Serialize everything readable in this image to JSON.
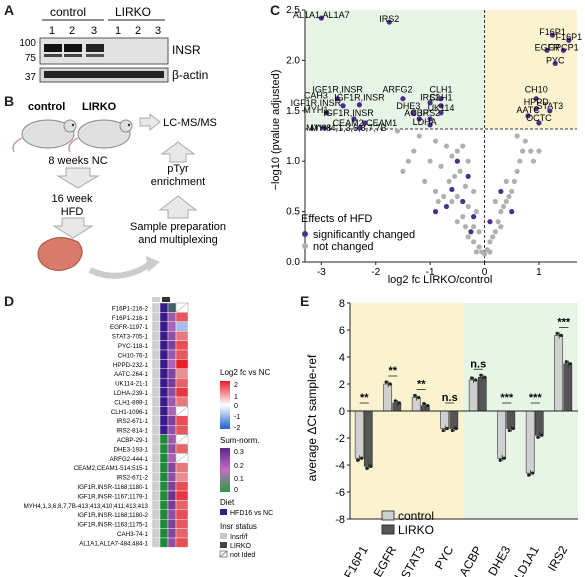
{
  "panels": {
    "A": {
      "label": "A",
      "groups": [
        "control",
        "LIRKO"
      ],
      "lanes": [
        "1",
        "2",
        "3",
        "1",
        "2",
        "3"
      ],
      "markers": [
        "100",
        "75",
        "37"
      ],
      "bands": [
        "INSR",
        "β-actin"
      ]
    },
    "B": {
      "label": "B",
      "mice": [
        "control",
        "LIRKO"
      ],
      "steps": [
        "8 weeks NC",
        "16 week HFD",
        "Sample preparation and multiplexing",
        "pTyr enrichment",
        "LC-MS/MS"
      ]
    },
    "C": {
      "label": "C",
      "ylabel": "−log10 (pvalue adjusted)",
      "xlabel": "log2 fc LIRKO/control",
      "legend_title": "Effects of HFD",
      "legend": [
        "significantly changed",
        "not changed"
      ],
      "colors": {
        "changed": "#4b2f8a",
        "unchanged": "#b0b0b0",
        "left_bg": "#e6f5e6",
        "right_bg": "#fbf3d0"
      }
    },
    "D": {
      "label": "D",
      "rows": [
        "F16P1-216-2",
        "F16P1-216-1",
        "EGFR-1197-1",
        "STAT3-705-1",
        "PYC-118-1",
        "CH10-76-1",
        "HPPD-232-1",
        "AATC-264-1",
        "UK114-21-1",
        "LDHA-239-1",
        "CLH1-899-1",
        "CLH1-1096-1",
        "IRS2-671-1",
        "IRS2-814-1",
        "ACBP-29-1",
        "DHE3-193-1",
        "ARFG2-444-1",
        "CEAM2,CEAM1-514;515-1",
        "IRS2-671-2",
        "IGF1R,INSR-1168;1180-1",
        "IGF1R,INSR-1167;1179-1",
        "MYH4,1,3,6,8,7,7B-413;413;410;411;413;413",
        "IGF1R,INSR-1168;1180-2",
        "IGF1R,INSR-1163;1175-1",
        "CAH3-74-1",
        "AL1A1,AL1A7-484;484-1"
      ],
      "legend_fc_title": "Log2 fc vs NC",
      "legend_fc_ticks": [
        "2",
        "1",
        "0",
        "-1",
        "-2"
      ],
      "legend_sum_title": "Sum-norm.",
      "legend_sum_ticks": [
        "0.3",
        "0.2",
        "0.1",
        "0"
      ],
      "legend_diet_title": "Diet",
      "legend_diet_item": "HFD16 vs NC",
      "legend_insr_title": "Insr status",
      "legend_insr_items": [
        "Insrf/f",
        "LIRKO",
        "not Ided"
      ]
    },
    "E": {
      "label": "E",
      "ylabel": "average ΔCt sample-ref",
      "legend": [
        "control",
        "LIRKO"
      ],
      "significance": [
        "**",
        "**",
        "**",
        "n.s",
        "n.s",
        "***",
        "***",
        "***"
      ]
    }
  },
  "chart_data": [
    {
      "type": "scatter",
      "title": "",
      "xlabel": "log2 fc LIRKO/control",
      "ylabel": "−log10 (pvalue adjusted)",
      "xlim": [
        -3.3,
        1.7
      ],
      "ylim": [
        0,
        2.5
      ],
      "xticks": [
        "-3",
        "-2",
        "-1",
        "0",
        "1"
      ],
      "yticks": [
        "0.0",
        "0.5",
        "1.0",
        "1.5",
        "2.0",
        "2.5"
      ],
      "labels": [
        {
          "text": "AL1A1,AL1A7",
          "x": -3.0,
          "y": 2.42
        },
        {
          "text": "IRS2",
          "x": -1.75,
          "y": 2.38
        },
        {
          "text": "F16P1",
          "x": 1.25,
          "y": 2.25
        },
        {
          "text": "F16P1",
          "x": 1.55,
          "y": 2.2
        },
        {
          "text": "EGFR",
          "x": 1.15,
          "y": 2.1
        },
        {
          "text": "GPCP1",
          "x": 1.45,
          "y": 2.1
        },
        {
          "text": "PYC",
          "x": 1.3,
          "y": 1.97
        },
        {
          "text": "CAH3",
          "x": -3.1,
          "y": 1.62
        },
        {
          "text": "IGF1R,INSR",
          "x": -2.7,
          "y": 1.68
        },
        {
          "text": "IGF1R,INSR",
          "x": -3.1,
          "y": 1.55
        },
        {
          "text": "IGF1R,INSR",
          "x": -2.3,
          "y": 1.6
        },
        {
          "text": "ARFG2",
          "x": -1.6,
          "y": 1.68
        },
        {
          "text": "IRS2",
          "x": -1.0,
          "y": 1.6
        },
        {
          "text": "CLH1",
          "x": -0.8,
          "y": 1.68
        },
        {
          "text": "CLH1",
          "x": -0.8,
          "y": 1.6
        },
        {
          "text": "UK114",
          "x": -0.8,
          "y": 1.5
        },
        {
          "text": "MYH1",
          "x": -3.1,
          "y": 1.48
        },
        {
          "text": "IGF1R,INSR",
          "x": -2.5,
          "y": 1.45
        },
        {
          "text": "CEAM2,CEAM1",
          "x": -2.2,
          "y": 1.35
        },
        {
          "text": "DHE3",
          "x": -1.4,
          "y": 1.52
        },
        {
          "text": "ACBP",
          "x": -1.25,
          "y": 1.45
        },
        {
          "text": "IRS2",
          "x": -1.0,
          "y": 1.45
        },
        {
          "text": "LDHA",
          "x": -1.1,
          "y": 1.36
        },
        {
          "text": "MYH8",
          "x": -3.05,
          "y": 1.3
        },
        {
          "text": "MYH4,1,3,6,8,7,7B",
          "x": -2.5,
          "y": 1.3
        },
        {
          "text": "CH10",
          "x": 0.95,
          "y": 1.68
        },
        {
          "text": "HPPD",
          "x": 0.95,
          "y": 1.56
        },
        {
          "text": "STAT3",
          "x": 1.2,
          "y": 1.52
        },
        {
          "text": "AATC",
          "x": 0.8,
          "y": 1.48
        },
        {
          "text": "OCTC",
          "x": 1.0,
          "y": 1.4
        }
      ],
      "points_changed": [
        [
          -3.0,
          2.42
        ],
        [
          -1.75,
          2.38
        ],
        [
          1.25,
          2.25
        ],
        [
          1.55,
          2.2
        ],
        [
          1.15,
          2.1
        ],
        [
          1.45,
          2.1
        ],
        [
          1.3,
          1.97
        ],
        [
          -2.7,
          1.62
        ],
        [
          -2.6,
          1.55
        ],
        [
          -2.3,
          1.56
        ],
        [
          -1.5,
          1.62
        ],
        [
          -1.0,
          1.58
        ],
        [
          -0.8,
          1.62
        ],
        [
          -0.8,
          1.55
        ],
        [
          -0.8,
          1.48
        ],
        [
          -2.9,
          1.48
        ],
        [
          -2.4,
          1.42
        ],
        [
          -2.2,
          1.38
        ],
        [
          -1.3,
          1.48
        ],
        [
          -1.2,
          1.42
        ],
        [
          -1.0,
          1.42
        ],
        [
          -1.0,
          1.36
        ],
        [
          -2.95,
          1.33
        ],
        [
          -2.3,
          1.33
        ],
        [
          0.95,
          1.62
        ],
        [
          0.95,
          1.52
        ],
        [
          1.2,
          1.5
        ],
        [
          0.8,
          1.45
        ],
        [
          1.0,
          1.38
        ],
        [
          -0.5,
          1.0
        ],
        [
          -0.3,
          0.85
        ],
        [
          -0.6,
          0.72
        ],
        [
          -0.4,
          0.6
        ],
        [
          -0.7,
          0.55
        ],
        [
          0.3,
          0.7
        ],
        [
          0.5,
          0.5
        ],
        [
          -0.2,
          0.45
        ],
        [
          -0.9,
          0.5
        ],
        [
          0.1,
          0.4
        ],
        [
          -0.25,
          0.3
        ]
      ],
      "points_unchanged": [
        [
          -1.6,
          1.3
        ],
        [
          -1.2,
          1.25
        ],
        [
          -0.9,
          1.2
        ],
        [
          -0.7,
          1.15
        ],
        [
          -0.5,
          1.1
        ],
        [
          -0.4,
          1.15
        ],
        [
          -0.6,
          1.05
        ],
        [
          -1.3,
          1.1
        ],
        [
          -1.0,
          1.0
        ],
        [
          -0.8,
          0.95
        ],
        [
          -0.3,
          1.0
        ],
        [
          -0.45,
          0.9
        ],
        [
          -0.55,
          0.85
        ],
        [
          -0.65,
          0.8
        ],
        [
          -0.35,
          0.75
        ],
        [
          -0.2,
          0.7
        ],
        [
          -0.5,
          0.65
        ],
        [
          -0.6,
          0.6
        ],
        [
          -0.3,
          0.55
        ],
        [
          -0.15,
          0.5
        ],
        [
          -0.4,
          0.45
        ],
        [
          -0.5,
          0.4
        ],
        [
          -0.2,
          0.35
        ],
        [
          -0.1,
          0.3
        ],
        [
          -0.3,
          0.25
        ],
        [
          -0.2,
          0.2
        ],
        [
          -0.1,
          0.15
        ],
        [
          -0.05,
          0.1
        ],
        [
          0.0,
          0.08
        ],
        [
          0.05,
          0.12
        ],
        [
          0.1,
          0.2
        ],
        [
          0.15,
          0.25
        ],
        [
          0.2,
          0.3
        ],
        [
          0.25,
          0.4
        ],
        [
          0.3,
          0.5
        ],
        [
          0.35,
          0.55
        ],
        [
          0.4,
          0.6
        ],
        [
          0.45,
          0.65
        ],
        [
          0.5,
          0.7
        ],
        [
          0.55,
          0.8
        ],
        [
          0.6,
          0.9
        ],
        [
          0.65,
          1.0
        ],
        [
          0.7,
          1.1
        ],
        [
          0.75,
          1.2
        ],
        [
          0.6,
          1.25
        ],
        [
          0.85,
          1.1
        ],
        [
          0.9,
          1.0
        ],
        [
          1.0,
          1.1
        ],
        [
          -1.4,
          1.0
        ],
        [
          -1.5,
          0.9
        ],
        [
          -0.9,
          0.7
        ],
        [
          -0.75,
          0.65
        ],
        [
          -0.85,
          0.6
        ],
        [
          0.2,
          0.6
        ],
        [
          0.4,
          0.8
        ],
        [
          -1.1,
          0.8
        ],
        [
          -0.35,
          0.35
        ],
        [
          0.3,
          0.35
        ],
        [
          0.1,
          0.1
        ],
        [
          -0.15,
          0.1
        ]
      ]
    },
    {
      "type": "heatmap",
      "title": "",
      "columns": [
        "Diet",
        "Insr status",
        "Sum-norm.",
        "Log2 fc vs NC"
      ],
      "rows": [
        "F16P1-216-2",
        "F16P1-216-1",
        "EGFR-1197-1",
        "STAT3-705-1",
        "PYC-118-1",
        "CH10-76-1",
        "HPPD-232-1",
        "AATC-264-1",
        "UK114-21-1",
        "LDHA-239-1",
        "CLH1-899-1",
        "CLH1-1096-1",
        "IRS2-671-1",
        "IRS2-814-1",
        "ACBP-29-1",
        "DHE3-193-1",
        "ARFG2-444-1",
        "CEAM2,CEAM1-514;515-1",
        "IRS2-671-2",
        "IGF1R,INSR-1168;1180-1",
        "IGF1R,INSR-1167;1179-1",
        "MYH4,1,3,6,8,7,7B-413;413;410;411;413;413",
        "IGF1R,INSR-1168;1180-2",
        "IGF1R,INSR-1163;1175-1",
        "CAH3-74-1",
        "AL1A1,AL1A7-484;484-1"
      ],
      "insr_status": [
        "LIRKO",
        "LIRKO",
        "LIRKO",
        "LIRKO",
        "LIRKO",
        "LIRKO",
        "LIRKO",
        "LIRKO",
        "LIRKO",
        "LIRKO",
        "LIRKO",
        "LIRKO",
        "LIRKO",
        "LIRKO",
        "Insrf/f",
        "Insrf/f",
        "Insrf/f",
        "Insrf/f",
        "Insrf/f",
        "Insrf/f",
        "Insrf/f",
        "Insrf/f",
        "Insrf/f",
        "Insrf/f",
        "Insrf/f",
        "Insrf/f"
      ],
      "sum_norm": [
        0.15,
        0.2,
        0.18,
        0.22,
        0.25,
        0.2,
        0.18,
        0.24,
        0.26,
        0.22,
        0.2,
        0.18,
        0.25,
        0.22,
        0.2,
        0.22,
        0.18,
        0.24,
        0.22,
        0.25,
        0.28,
        0.26,
        0.22,
        0.25,
        0.24,
        0.22
      ],
      "log2fc": [
        null,
        1.5,
        -0.8,
        1.2,
        1.6,
        1.5,
        2.0,
        1.0,
        1.4,
        1.8,
        1.2,
        null,
        1.6,
        1.5,
        null,
        1.4,
        null,
        1.2,
        1.0,
        1.6,
        1.8,
        1.4,
        1.6,
        1.5,
        1.4,
        1.6
      ]
    },
    {
      "type": "bar",
      "title": "",
      "categories": [
        "F16P1",
        "EGFR",
        "STAT3",
        "PYC",
        "ACBP",
        "DHE3",
        "ALD1A1",
        "IRS2"
      ],
      "series": [
        {
          "name": "control",
          "values": [
            -3.5,
            2.0,
            1.0,
            -1.3,
            2.3,
            -3.5,
            -4.6,
            5.6
          ]
        },
        {
          "name": "LIRKO",
          "values": [
            -4.1,
            0.6,
            0.4,
            -1.3,
            2.5,
            -1.3,
            -1.8,
            3.5
          ]
        }
      ],
      "xlabel": "",
      "ylabel": "average ΔCt sample-ref",
      "ylim": [
        -8,
        8
      ],
      "yticks": [
        "8",
        "6",
        "4",
        "2",
        "0",
        "-2",
        "-4",
        "-6",
        "-8"
      ]
    }
  ]
}
